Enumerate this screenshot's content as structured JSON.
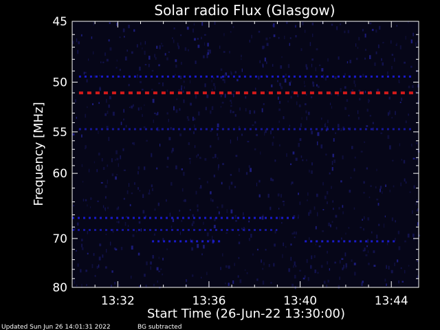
{
  "chart_data": {
    "type": "heatmap",
    "title": "Solar radio Flux (Glasgow)",
    "xlabel": "Start Time (26-Jun-22 13:30:00)",
    "ylabel": "Frequency [MHz]",
    "x_ticks": [
      "13:32",
      "13:36",
      "13:40",
      "13:44"
    ],
    "x_tick_minutes": [
      2,
      6,
      10,
      14
    ],
    "xlim_minutes": [
      0,
      15.2
    ],
    "y_ticks": [
      45,
      50,
      55,
      60,
      70,
      80
    ],
    "ylim": [
      45,
      80
    ],
    "y_scale": "reciprocal",
    "colormap": [
      "#000000",
      "#0b0b4a",
      "#1a1acc",
      "#d41a1a"
    ],
    "grid": false,
    "bands": [
      {
        "freq_mhz": 49.5,
        "intensity": "medium",
        "minutes": [
          0.3,
          15.0
        ]
      },
      {
        "freq_mhz": 51.0,
        "intensity": "high",
        "minutes": [
          0.3,
          15.0
        ]
      },
      {
        "freq_mhz": 54.7,
        "intensity": "low",
        "minutes": [
          0.3,
          15.0
        ]
      },
      {
        "freq_mhz": 66.5,
        "intensity": "medium",
        "minutes": [
          0.0,
          9.9
        ]
      },
      {
        "freq_mhz": 68.5,
        "intensity": "low",
        "minutes": [
          0.0,
          9.0
        ]
      },
      {
        "freq_mhz": 70.5,
        "intensity": "medium",
        "minutes": [
          3.5,
          6.5
        ]
      },
      {
        "freq_mhz": 70.5,
        "intensity": "medium",
        "minutes": [
          10.2,
          14.2
        ]
      }
    ]
  },
  "footer": {
    "updated": "Updated Sun Jun 26 14:01:31 2022",
    "note": "BG subtracted"
  }
}
